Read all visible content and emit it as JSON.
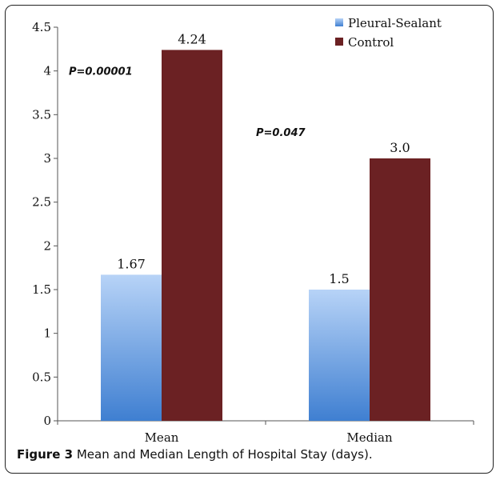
{
  "caption": {
    "label": "Figure 3",
    "text": "Mean and Median Length of Hospital Stay (days)."
  },
  "chart_data": {
    "type": "bar",
    "categories": [
      "Mean",
      "Median"
    ],
    "series": [
      {
        "name": "Pleural-Sealant",
        "values": [
          1.67,
          1.5
        ],
        "labels": [
          "1.67",
          "1.5"
        ],
        "color_top": "#b7d3f7",
        "color_bottom": "#3f7fd1"
      },
      {
        "name": "Control",
        "values": [
          4.24,
          3.0
        ],
        "labels": [
          "4.24",
          "3.0"
        ],
        "color": "#6b2123"
      }
    ],
    "ylim": [
      0,
      4.5
    ],
    "yticks": [
      "0",
      "0.5",
      "1",
      "1.5",
      "2",
      "2.5",
      "3",
      "3.5",
      "4",
      "4.5"
    ],
    "xlabel": "",
    "ylabel": "",
    "legend": "top-right",
    "grid": false,
    "annotations": [
      {
        "text": "P=0.00001",
        "category": "Mean",
        "y": 4.0
      },
      {
        "text": "P=0.047",
        "category": "Median",
        "y": 3.3
      }
    ]
  }
}
